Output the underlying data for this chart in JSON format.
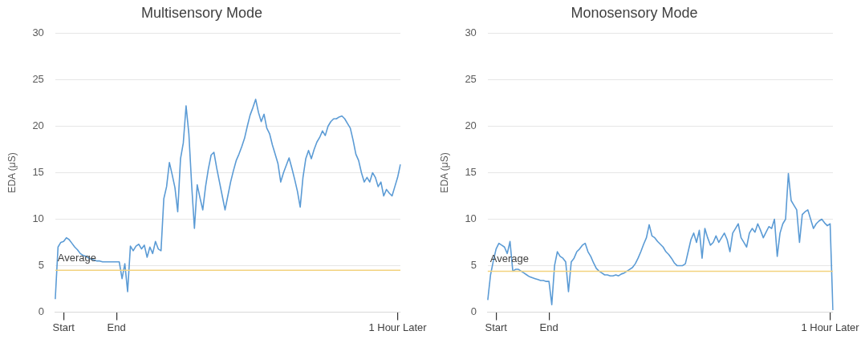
{
  "chart_data": [
    {
      "type": "line",
      "title": "Multisensory Mode",
      "ylabel": "EDA (μS)",
      "grid": "y",
      "legend": false,
      "marker": "none",
      "line_style": "solid",
      "categories": [
        null,
        null,
        null,
        "Start",
        null,
        null,
        null,
        null,
        null,
        null,
        null,
        null,
        null,
        null,
        null,
        null,
        null,
        null,
        null,
        null,
        null,
        null,
        "End",
        null,
        null,
        null,
        null,
        null,
        null,
        null,
        null,
        null,
        null,
        null,
        null,
        null,
        null,
        null,
        null,
        null,
        null,
        null,
        null,
        null,
        null,
        null,
        null,
        null,
        null,
        null,
        null,
        null,
        null,
        null,
        null,
        null,
        null,
        null,
        null,
        null,
        null,
        null,
        null,
        null,
        null,
        null,
        null,
        null,
        null,
        null,
        null,
        null,
        null,
        null,
        null,
        null,
        null,
        null,
        null,
        null,
        null,
        null,
        null,
        null,
        null,
        null,
        null,
        null,
        null,
        null,
        null,
        null,
        null,
        null,
        null,
        null,
        null,
        null,
        null,
        null,
        null,
        null,
        null,
        null,
        null,
        null,
        null,
        null,
        null,
        null,
        null,
        null,
        null,
        null,
        null,
        null,
        null,
        null,
        null,
        null,
        null,
        null,
        null,
        "1 Hour Later",
        null
      ],
      "ylim": [
        0,
        30
      ],
      "yticks": [
        0,
        5,
        10,
        15,
        20,
        25,
        30
      ],
      "ref_lines": [
        {
          "axis": "y",
          "value": 4.5,
          "label": "Average",
          "color": "#f2d27e"
        }
      ],
      "series": [
        {
          "color": "#5b9bd5",
          "values": [
            1.4,
            7.0,
            7.5,
            7.6,
            8.0,
            7.8,
            7.4,
            7.0,
            6.7,
            6.3,
            6.1,
            6.0,
            5.8,
            5.7,
            5.6,
            5.5,
            5.5,
            5.4,
            5.4,
            5.4,
            5.4,
            5.4,
            5.4,
            5.4,
            3.6,
            5.2,
            2.2,
            7.1,
            6.6,
            7.1,
            7.3,
            6.8,
            7.2,
            5.9,
            7.0,
            6.3,
            7.6,
            6.8,
            6.6,
            12.2,
            13.5,
            16.1,
            14.8,
            13.4,
            10.8,
            16.5,
            18.2,
            22.2,
            19.2,
            13.7,
            9.0,
            13.7,
            12.3,
            11.0,
            13.5,
            15.4,
            16.9,
            17.2,
            15.5,
            14.0,
            12.5,
            11.0,
            12.5,
            14.0,
            15.2,
            16.3,
            17.0,
            17.8,
            18.7,
            20.0,
            21.2,
            22.0,
            22.9,
            21.5,
            20.5,
            21.3,
            19.8,
            19.2,
            18.0,
            17.0,
            16.0,
            14.0,
            15.0,
            15.8,
            16.6,
            15.5,
            14.3,
            13.0,
            11.3,
            14.5,
            16.5,
            17.4,
            16.5,
            17.5,
            18.3,
            18.8,
            19.5,
            19.0,
            20.0,
            20.5,
            20.8,
            20.8,
            21.0,
            21.1,
            20.8,
            20.3,
            19.8,
            18.5,
            17.0,
            16.3,
            15.0,
            14.0,
            14.5,
            14.0,
            15.0,
            14.5,
            13.5,
            14.0,
            12.5,
            13.2,
            12.8,
            12.5,
            13.5,
            14.5,
            15.9
          ]
        }
      ]
    },
    {
      "type": "line",
      "title": "Monosensory Mode",
      "ylabel": "EDA (μS)",
      "grid": "y",
      "legend": false,
      "marker": "none",
      "line_style": "solid",
      "categories": [
        null,
        null,
        null,
        "Start",
        null,
        null,
        null,
        null,
        null,
        null,
        null,
        null,
        null,
        null,
        null,
        null,
        null,
        null,
        null,
        null,
        null,
        null,
        "End",
        null,
        null,
        null,
        null,
        null,
        null,
        null,
        null,
        null,
        null,
        null,
        null,
        null,
        null,
        null,
        null,
        null,
        null,
        null,
        null,
        null,
        null,
        null,
        null,
        null,
        null,
        null,
        null,
        null,
        null,
        null,
        null,
        null,
        null,
        null,
        null,
        null,
        null,
        null,
        null,
        null,
        null,
        null,
        null,
        null,
        null,
        null,
        null,
        null,
        null,
        null,
        null,
        null,
        null,
        null,
        null,
        null,
        null,
        null,
        null,
        null,
        null,
        null,
        null,
        null,
        null,
        null,
        null,
        null,
        null,
        null,
        null,
        null,
        null,
        null,
        null,
        null,
        null,
        null,
        null,
        null,
        null,
        null,
        null,
        null,
        null,
        null,
        null,
        null,
        null,
        null,
        null,
        null,
        null,
        null,
        null,
        null,
        null,
        null,
        null,
        "1 Hour Later",
        null
      ],
      "ylim": [
        0,
        30
      ],
      "yticks": [
        0,
        5,
        10,
        15,
        20,
        25,
        30
      ],
      "ref_lines": [
        {
          "axis": "y",
          "value": 4.4,
          "label": "Average",
          "color": "#f2d27e"
        }
      ],
      "series": [
        {
          "color": "#5b9bd5",
          "values": [
            1.3,
            4.0,
            5.5,
            6.8,
            7.4,
            7.2,
            7.0,
            6.3,
            7.6,
            4.4,
            4.6,
            4.6,
            4.4,
            4.2,
            4.0,
            3.8,
            3.7,
            3.6,
            3.5,
            3.4,
            3.4,
            3.3,
            3.3,
            0.8,
            5.0,
            6.5,
            6.0,
            5.8,
            5.4,
            2.2,
            5.4,
            5.8,
            6.5,
            6.8,
            7.2,
            7.4,
            6.5,
            6.0,
            5.3,
            4.7,
            4.4,
            4.2,
            4.0,
            4.0,
            3.9,
            3.9,
            4.0,
            3.9,
            4.1,
            4.2,
            4.4,
            4.6,
            4.8,
            5.2,
            5.8,
            6.5,
            7.3,
            8.0,
            9.4,
            8.2,
            8.0,
            7.6,
            7.3,
            7.0,
            6.5,
            6.2,
            5.8,
            5.3,
            5.0,
            5.0,
            5.0,
            5.2,
            6.5,
            7.8,
            8.5,
            7.5,
            8.8,
            5.8,
            9.0,
            8.0,
            7.2,
            7.5,
            8.2,
            7.5,
            8.0,
            8.5,
            7.8,
            6.5,
            8.5,
            9.0,
            9.5,
            8.0,
            7.5,
            7.0,
            8.5,
            9.0,
            8.6,
            9.5,
            8.8,
            8.0,
            8.6,
            9.2,
            9.0,
            10.0,
            6.0,
            8.5,
            9.5,
            10.0,
            14.9,
            12.0,
            11.5,
            11.0,
            7.5,
            10.5,
            10.8,
            11.0,
            10.0,
            9.0,
            9.5,
            9.8,
            10.0,
            9.6,
            9.3,
            9.5,
            0.2
          ]
        }
      ]
    }
  ]
}
